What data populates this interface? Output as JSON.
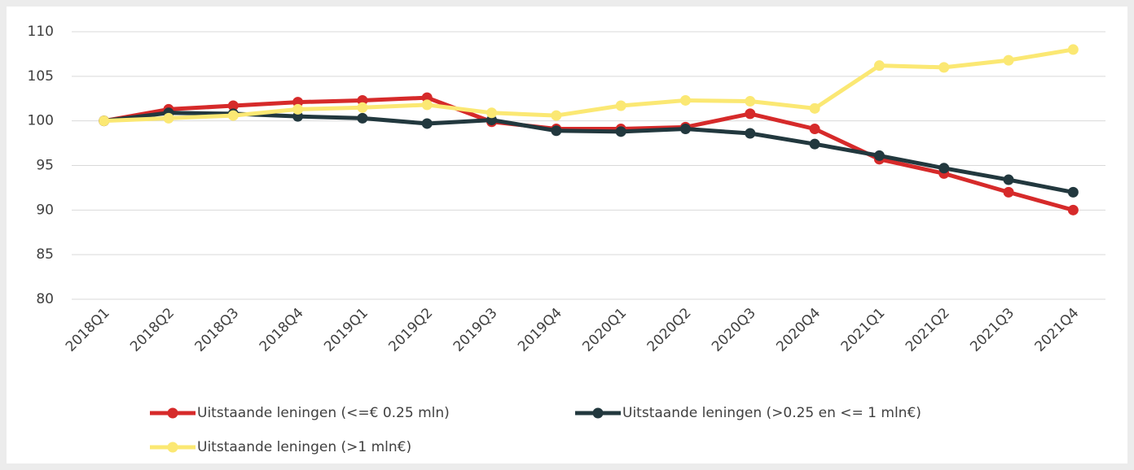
{
  "chart_data": {
    "type": "line",
    "categories": [
      "2018Q1",
      "2018Q2",
      "2018Q3",
      "2018Q4",
      "2019Q1",
      "2019Q2",
      "2019Q3",
      "2019Q4",
      "2020Q1",
      "2020Q2",
      "2020Q3",
      "2020Q4",
      "2021Q1",
      "2021Q2",
      "2021Q3",
      "2021Q4"
    ],
    "series": [
      {
        "name": "Uitstaande leningen (<=€ 0.25 mln)",
        "color": "#d62a2a",
        "values": [
          100,
          101.3,
          101.7,
          102.1,
          102.3,
          102.6,
          99.9,
          99.1,
          99.1,
          99.3,
          100.8,
          99.1,
          95.7,
          94.1,
          92.0,
          90.0
        ]
      },
      {
        "name": "Uitstaande leningen (>0.25 en <= 1 mln€)",
        "color": "#22383e",
        "values": [
          100,
          100.9,
          100.8,
          100.5,
          100.3,
          99.7,
          100.1,
          98.9,
          98.8,
          99.1,
          98.6,
          97.4,
          96.1,
          94.7,
          93.4,
          92.0
        ]
      },
      {
        "name": "Uitstaande leningen (>1 mln€)",
        "color": "#fbe873",
        "values": [
          100,
          100.3,
          100.6,
          101.3,
          101.5,
          101.8,
          100.9,
          100.6,
          101.7,
          102.3,
          102.2,
          101.4,
          106.2,
          106.0,
          106.8,
          108.0
        ]
      }
    ],
    "ylim": [
      80,
      110
    ],
    "yticks": [
      80,
      85,
      90,
      95,
      100,
      105,
      110
    ],
    "grid": true
  }
}
